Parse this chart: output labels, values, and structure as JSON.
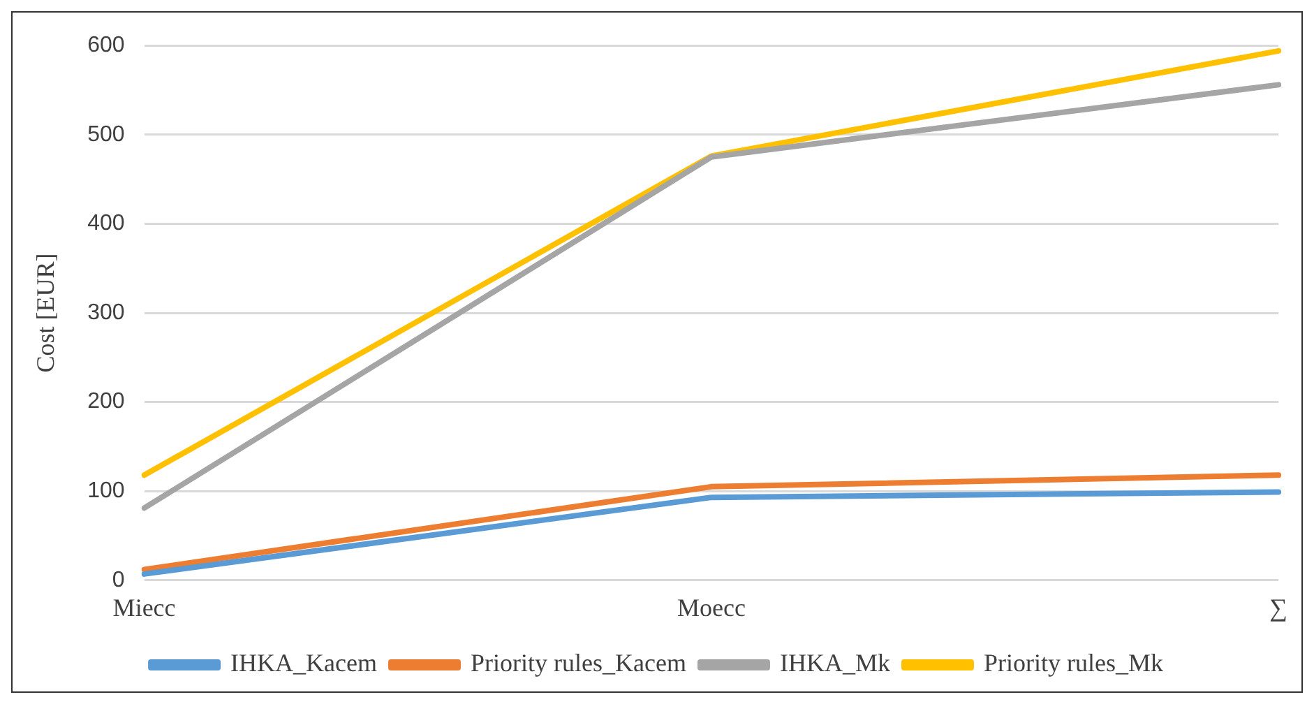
{
  "chart_data": {
    "type": "line",
    "ylabel": "Cost [EUR]",
    "categories": [
      "Miecc",
      "Moecc",
      "∑"
    ],
    "series": [
      {
        "name": "IHKA_Kacem",
        "color": "#5b9bd5",
        "values": [
          7,
          93,
          99
        ]
      },
      {
        "name": "Priority rules_Kacem",
        "color": "#ed7d31",
        "values": [
          12,
          105,
          118
        ]
      },
      {
        "name": "IHKA_Mk",
        "color": "#a5a5a5",
        "values": [
          81,
          475,
          556
        ]
      },
      {
        "name": "Priority rules_Mk",
        "color": "#ffc000",
        "values": [
          118,
          476,
          594
        ]
      }
    ],
    "ylim": [
      0,
      600
    ],
    "yticks": [
      0,
      100,
      200,
      300,
      400,
      500,
      600
    ],
    "grid": "y",
    "legend": "bottom",
    "marker": "none",
    "line_style": "solid"
  }
}
